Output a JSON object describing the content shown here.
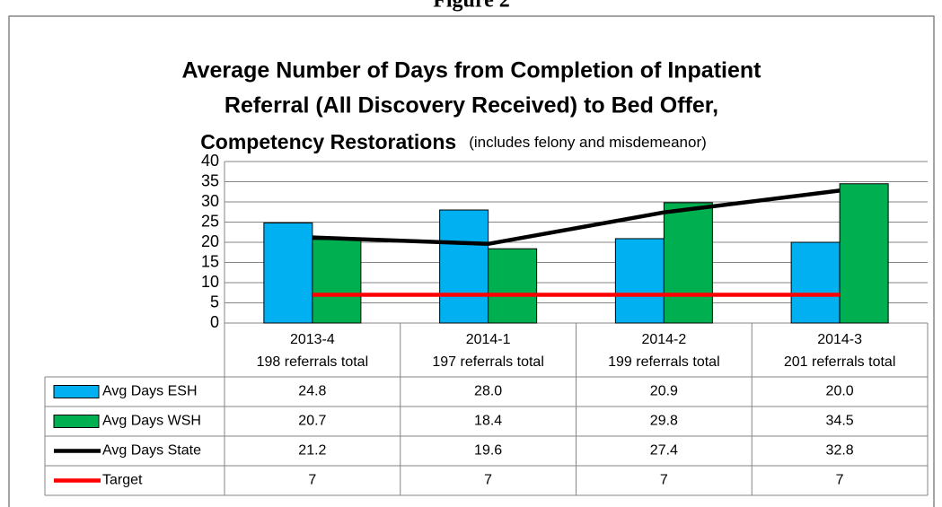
{
  "figure_label": "Figure 2",
  "chart_data": {
    "type": "bar",
    "title_lines": [
      "Average Number of Days from Completion of Inpatient",
      "Referral (All Discovery Received) to Bed Offer,",
      "Competency Restorations"
    ],
    "subtitle": "(includes felony and misdemeanor)",
    "categories": [
      "2013-4",
      "2014-1",
      "2014-2",
      "2014-3"
    ],
    "category_notes": [
      "198 referrals total",
      "197 referrals total",
      "199 referrals total",
      "201 referrals total"
    ],
    "series": [
      {
        "name": "Avg Days ESH",
        "type": "bar",
        "color": "#00b0f0",
        "values": [
          24.8,
          28.0,
          20.9,
          20.0
        ],
        "value_labels": [
          "24.8",
          "28.0",
          "20.9",
          "20.0"
        ]
      },
      {
        "name": "Avg Days WSH",
        "type": "bar",
        "color": "#00b050",
        "values": [
          20.7,
          18.4,
          29.8,
          34.5
        ],
        "value_labels": [
          "20.7",
          "18.4",
          "29.8",
          "34.5"
        ]
      },
      {
        "name": "Avg Days State",
        "type": "line",
        "color": "#000000",
        "values": [
          21.2,
          19.6,
          27.4,
          32.8
        ],
        "value_labels": [
          "21.2",
          "19.6",
          "27.4",
          "32.8"
        ]
      },
      {
        "name": "Target",
        "type": "line",
        "color": "#ff0000",
        "values": [
          7,
          7,
          7,
          7
        ],
        "value_labels": [
          "7",
          "7",
          "7",
          "7"
        ]
      }
    ],
    "ylim": [
      0,
      40
    ],
    "yticks": [
      0,
      5,
      10,
      15,
      20,
      25,
      30,
      35,
      40
    ],
    "grid": true,
    "data_table": true
  }
}
